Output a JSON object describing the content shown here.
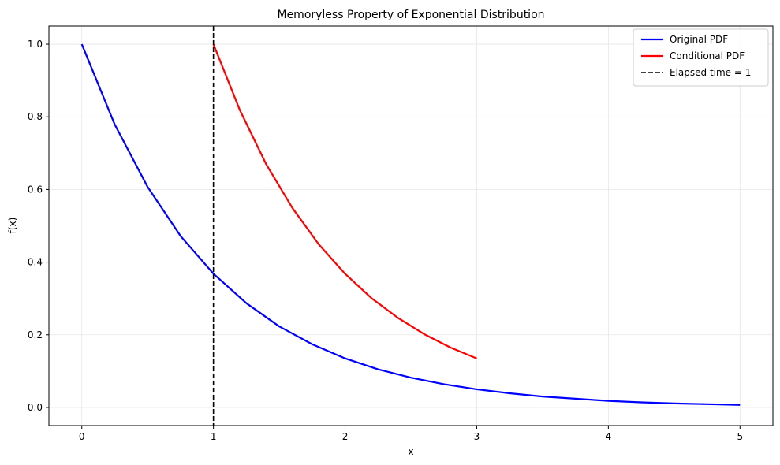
{
  "chart_data": {
    "type": "line",
    "title": "Memoryless Property of Exponential Distribution",
    "xlabel": "x",
    "ylabel": "f(x)",
    "xlim": [
      -0.25,
      5.25
    ],
    "ylim": [
      -0.05,
      1.05
    ],
    "xticks": [
      "0",
      "1",
      "2",
      "3",
      "4",
      "5"
    ],
    "yticks": [
      "0.0",
      "0.2",
      "0.4",
      "0.6",
      "0.8",
      "1.0"
    ],
    "grid": true,
    "legend_position": "top-right",
    "series": [
      {
        "name": "Original PDF",
        "color": "#0000ff",
        "style": "solid",
        "x": [
          0,
          0.25,
          0.5,
          0.75,
          1.0,
          1.25,
          1.5,
          1.75,
          2.0,
          2.25,
          2.5,
          2.75,
          3.0,
          3.25,
          3.5,
          3.75,
          4.0,
          4.25,
          4.5,
          4.75,
          5.0
        ],
        "y": [
          1.0,
          0.779,
          0.607,
          0.472,
          0.368,
          0.287,
          0.223,
          0.174,
          0.135,
          0.105,
          0.082,
          0.064,
          0.05,
          0.039,
          0.03,
          0.024,
          0.018,
          0.014,
          0.011,
          0.009,
          0.007
        ]
      },
      {
        "name": "Conditional PDF",
        "color": "#ff0000",
        "style": "solid",
        "x": [
          1.0,
          1.2,
          1.4,
          1.6,
          1.8,
          2.0,
          2.2,
          2.4,
          2.6,
          2.8,
          3.0
        ],
        "y": [
          1.0,
          0.819,
          0.67,
          0.549,
          0.449,
          0.368,
          0.301,
          0.247,
          0.202,
          0.165,
          0.135
        ]
      },
      {
        "name": "Elapsed time = 1",
        "color": "#000000",
        "style": "dashed",
        "vline_x": 1
      }
    ]
  }
}
